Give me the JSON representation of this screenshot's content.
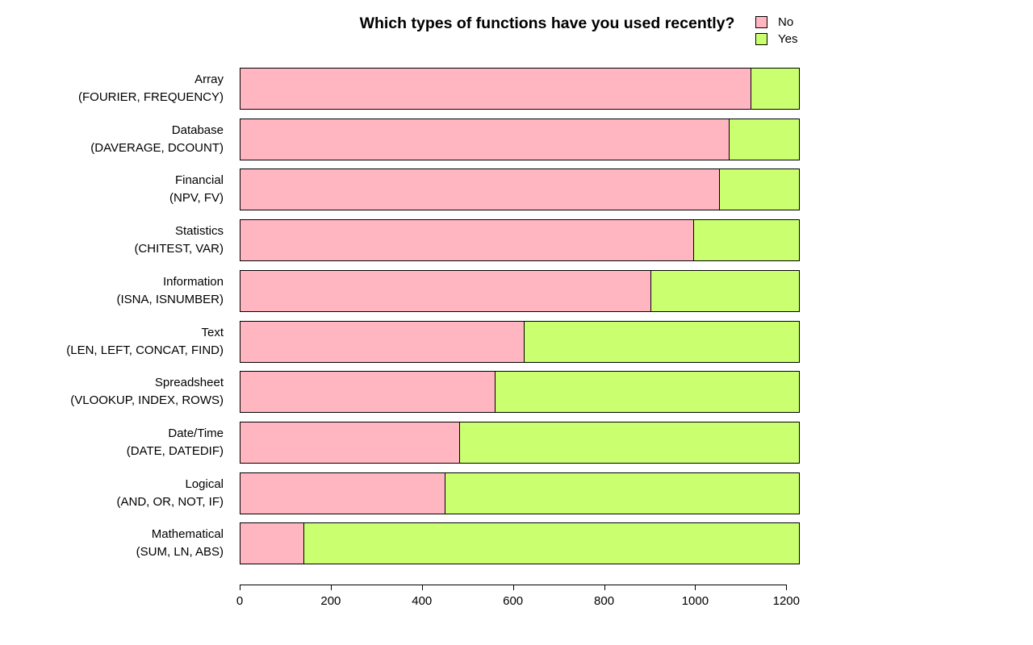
{
  "chart_data": {
    "type": "bar",
    "orientation": "horizontal",
    "stacked": true,
    "title": "Which types of functions have you used recently?",
    "categories": [
      {
        "name": "Array",
        "detail": "(FOURIER, FREQUENCY)"
      },
      {
        "name": "Database",
        "detail": "(DAVERAGE, DCOUNT)"
      },
      {
        "name": "Financial",
        "detail": "(NPV, FV)"
      },
      {
        "name": "Statistics",
        "detail": "(CHITEST, VAR)"
      },
      {
        "name": "Information",
        "detail": "(ISNA, ISNUMBER)"
      },
      {
        "name": "Text",
        "detail": "(LEN, LEFT, CONCAT, FIND)"
      },
      {
        "name": "Spreadsheet",
        "detail": "(VLOOKUP, INDEX, ROWS)"
      },
      {
        "name": "Date/Time",
        "detail": "(DATE, DATEDIF)"
      },
      {
        "name": "Logical",
        "detail": "(AND, OR, NOT, IF)"
      },
      {
        "name": "Mathematical",
        "detail": "(SUM, LN, ABS)"
      }
    ],
    "series": [
      {
        "name": "No",
        "color": "#FFB6C1",
        "values": [
          1123,
          1076,
          1055,
          998,
          904,
          625,
          562,
          484,
          452,
          142
        ]
      },
      {
        "name": "Yes",
        "color": "#CAFF70",
        "values": [
          108,
          155,
          176,
          233,
          327,
          606,
          669,
          747,
          779,
          1089
        ]
      }
    ],
    "xlabel": "",
    "ylabel": "",
    "xlim": [
      0,
      1200
    ],
    "xticks": [
      0,
      200,
      400,
      600,
      800,
      1000,
      1200
    ],
    "grid": false,
    "legend_position": "top-right",
    "axis_color": "#000000",
    "background_color": "#ffffff"
  }
}
